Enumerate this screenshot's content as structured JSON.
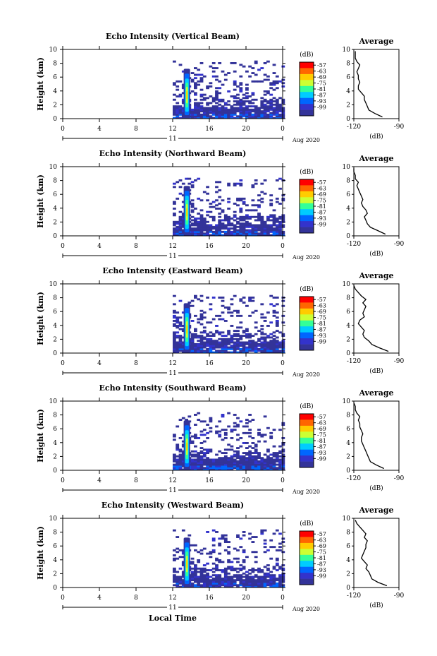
{
  "chart_data": {
    "type": "heatmap",
    "xlabel": "Local Time",
    "x_ticks": [
      "0",
      "4",
      "8",
      "12",
      "16",
      "20",
      "0"
    ],
    "x_range": [
      0,
      24
    ],
    "date_day": "11",
    "date_month_year": "Aug 2020",
    "ylabel": "Height (km)",
    "y_ticks": [
      "0",
      "2",
      "4",
      "6",
      "8",
      "10"
    ],
    "y_range": [
      0,
      10
    ],
    "colorbar": {
      "unit_label": "(dB)",
      "tick_labels": [
        "-57",
        "-63",
        "-69",
        "-75",
        "-81",
        "-87",
        "-93",
        "-99"
      ],
      "colors": [
        "#ff0000",
        "#ff6600",
        "#ffcc00",
        "#ccff33",
        "#33ff99",
        "#00ccff",
        "#0066ff",
        "#3333cc",
        "#333399"
      ]
    },
    "profile": {
      "title": "Average",
      "xlabel": "(dB)",
      "x_ticks": [
        "-120",
        "-90"
      ],
      "x_range": [
        -120,
        -90
      ],
      "y_ticks": [
        "0",
        "2",
        "4",
        "6",
        "8",
        "10"
      ]
    },
    "panels": [
      {
        "title": "Echo Intensity (Vertical Beam)",
        "profile_x": [
          -101,
          -106,
          -110,
          -111,
          -112,
          -113,
          -113,
          -115,
          -117,
          -117,
          -116,
          -117,
          -117,
          -118,
          -117,
          -116,
          -118,
          -119,
          -119,
          -119
        ]
      },
      {
        "title": "Echo Intensity (Northward Beam)",
        "profile_x": [
          -99,
          -104,
          -109,
          -111,
          -112,
          -113,
          -111,
          -112,
          -114,
          -115,
          -114,
          -115,
          -116,
          -117,
          -118,
          -117,
          -119,
          -119,
          -120,
          -120
        ]
      },
      {
        "title": "Echo Intensity (Eastward Beam)",
        "profile_x": [
          -97,
          -103,
          -108,
          -110,
          -113,
          -114,
          -113,
          -115,
          -117,
          -116,
          -113,
          -114,
          -113,
          -112,
          -114,
          -112,
          -115,
          -117,
          -119,
          -120
        ]
      },
      {
        "title": "Echo Intensity (Southward Beam)",
        "profile_x": [
          -100,
          -105,
          -109,
          -110,
          -111,
          -112,
          -113,
          -114,
          -115,
          -115,
          -114,
          -115,
          -116,
          -116,
          -117,
          -116,
          -118,
          -119,
          -119,
          -120
        ]
      },
      {
        "title": "Echo Intensity (Westward Beam)",
        "profile_x": [
          -98,
          -104,
          -108,
          -109,
          -110,
          -112,
          -111,
          -113,
          -115,
          -114,
          -113,
          -112,
          -112,
          -111,
          -113,
          -112,
          -114,
          -116,
          -118,
          -119
        ]
      }
    ]
  }
}
